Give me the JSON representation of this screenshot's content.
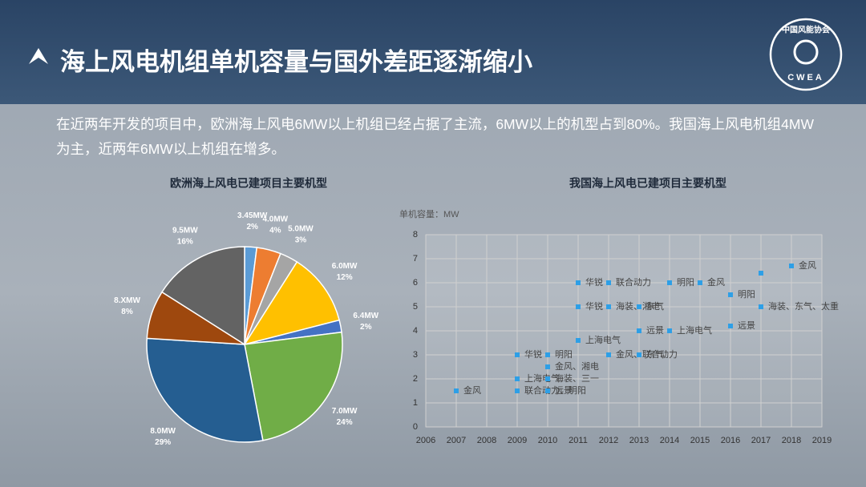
{
  "header": {
    "title": "海上风电机组单机容量与国外差距逐渐缩小",
    "logo_name": "中国风能协会",
    "logo_abbr": "CWEA"
  },
  "intro": "在近两年开发的项目中，欧洲海上风电6MW以上机组已经占据了主流，6MW以上的机型占到80%。我国海上风电机组4MW为主，近两年6MW以上机组在增多。",
  "chart_data": [
    {
      "type": "pie",
      "title": "欧洲海上风电已建项目主要机型",
      "categories": [
        "3.45MW",
        "4.0MW",
        "5.0MW",
        "6.0MW",
        "6.4MW",
        "7.0MW",
        "8.0MW",
        "8.XMW",
        "9.5MW"
      ],
      "values": [
        2,
        4,
        3,
        12,
        2,
        24,
        29,
        8,
        16
      ],
      "value_labels": [
        "2%",
        "4%",
        "3%",
        "12%",
        "2%",
        "24%",
        "29%",
        "8%",
        "16%"
      ],
      "colors": [
        "#5b9bd5",
        "#ed7d31",
        "#a5a5a5",
        "#ffc000",
        "#4472c4",
        "#70ad47",
        "#255e91",
        "#9e480e",
        "#636363"
      ]
    },
    {
      "type": "scatter",
      "title": "我国海上风电已建项目主要机型",
      "ylabel": "单机容量：MW",
      "x": [
        2007,
        2009,
        2009,
        2009,
        2010,
        2010,
        2010,
        2010,
        2011,
        2012,
        2014,
        2015,
        2011,
        2012,
        2013,
        2011,
        2012,
        2013,
        2013,
        2014,
        2016,
        2016,
        2017,
        2017,
        2018
      ],
      "values": [
        1.5,
        1.5,
        3,
        2,
        3,
        2.5,
        2,
        1.5,
        6,
        6,
        6,
        6,
        5,
        5,
        5,
        3.6,
        3,
        3,
        4,
        4,
        5.5,
        4.2,
        6.4,
        5,
        6.7
      ],
      "point_labels": [
        "金风",
        "联合动力、明阳",
        "华锐",
        "上海电气",
        "明阳",
        "金风、湘电",
        "海装、三一",
        "远景",
        "华锐",
        "联合动力",
        "明阳",
        "金风",
        "华锐",
        "海装、湘电",
        "东气",
        "上海电气",
        "金风、联合动力",
        "东气",
        "远景",
        "上海电气",
        "明阳",
        "远景",
        null,
        "海装、东气、太重",
        "金风"
      ],
      "color": "#2e9fe6",
      "xlim": [
        2006,
        2019
      ],
      "xticks": [
        2006,
        2007,
        2008,
        2009,
        2010,
        2011,
        2012,
        2013,
        2014,
        2015,
        2016,
        2017,
        2018,
        2019
      ],
      "ylim": [
        0,
        8
      ],
      "yticks": [
        0,
        1,
        2,
        3,
        4,
        5,
        6,
        7,
        8
      ],
      "grid": true
    }
  ]
}
